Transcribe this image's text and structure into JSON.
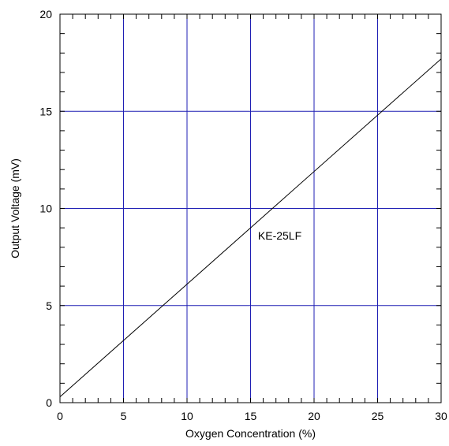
{
  "chart_data": {
    "type": "line",
    "title": "",
    "xlabel": "Oxygen Concentration (%)",
    "ylabel": "Output Voltage (mV)",
    "xlim": [
      0,
      30
    ],
    "ylim": [
      0,
      20
    ],
    "x_ticks": [
      0,
      5,
      10,
      15,
      20,
      25,
      30
    ],
    "y_ticks": [
      0,
      5,
      10,
      15,
      20
    ],
    "grid": true,
    "grid_color": "#1f1fb4",
    "minor_ticks": {
      "x": 1,
      "y": 1
    },
    "series": [
      {
        "x": [
          0,
          30
        ],
        "y": [
          0.3,
          17.7
        ],
        "color": "#000000"
      }
    ],
    "annotations": [
      {
        "text": "KE-25LF",
        "x": 17.3,
        "y": 8.4
      }
    ]
  }
}
